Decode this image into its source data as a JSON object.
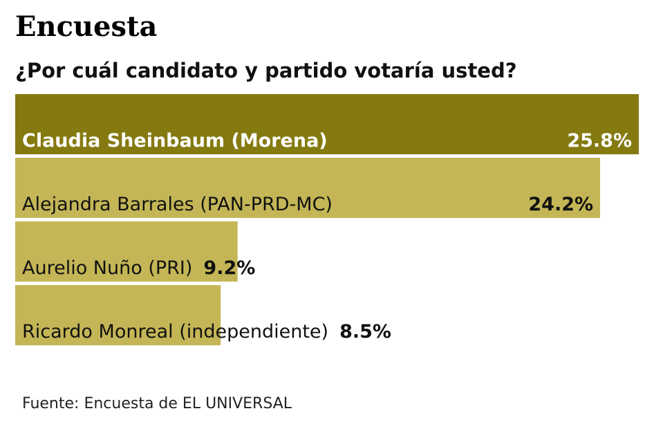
{
  "chart_data": {
    "type": "bar",
    "orientation": "horizontal",
    "title": "Encuesta",
    "subtitle": "¿Por cuál candidato y partido votaría usted?",
    "categories": [
      "Claudia Sheinbaum (Morena)",
      "Alejandra Barrales  (PAN-PRD-MC)",
      "Aurelio Nuño (PRI)",
      "Ricardo Monreal (independiente)"
    ],
    "values": [
      25.8,
      24.2,
      9.2,
      8.5
    ],
    "value_labels": [
      "25.8%",
      "24.2%",
      "9.2%",
      "8.5%"
    ],
    "colors": [
      "#857a10",
      "#c4b656",
      "#c4b656",
      "#c4b656"
    ],
    "source": "Fuente: Encuesta de EL UNIVERSAL"
  }
}
